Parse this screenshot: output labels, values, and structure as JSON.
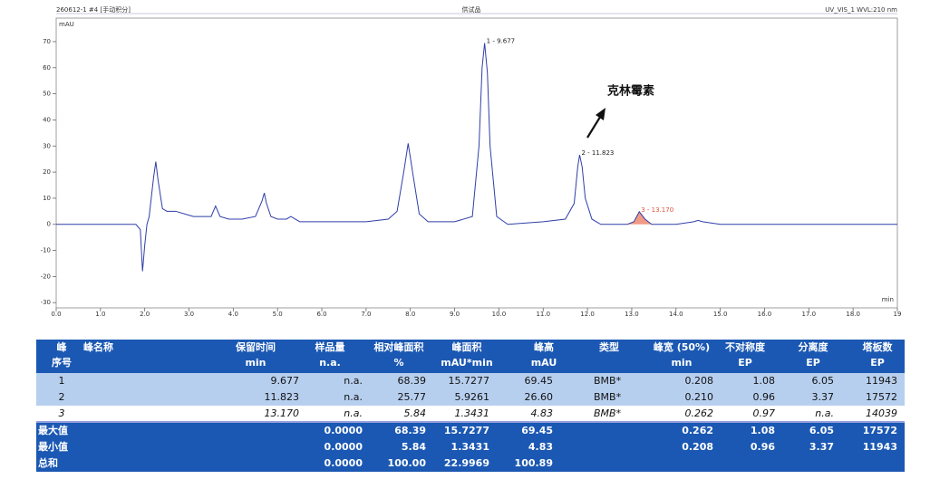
{
  "chart_data": {
    "type": "line",
    "header_left": "260612-1 #4 [手动积分]",
    "title": "供试品",
    "header_right": "UV_VIS_1 WVL:210 nm",
    "y_label": "mAU",
    "x_label": "min",
    "color": "#2f3fa8",
    "x": [
      0,
      0.5,
      1.0,
      1.5,
      1.8,
      1.9,
      1.95,
      2.0,
      2.05,
      2.1,
      2.2,
      2.25,
      2.3,
      2.4,
      2.5,
      2.7,
      2.9,
      3.1,
      3.3,
      3.5,
      3.6,
      3.7,
      3.9,
      4.2,
      4.5,
      4.65,
      4.7,
      4.75,
      4.85,
      5.0,
      5.2,
      5.3,
      5.5,
      6.0,
      6.5,
      7.0,
      7.5,
      7.7,
      7.85,
      7.95,
      8.05,
      8.2,
      8.4,
      9.0,
      9.4,
      9.55,
      9.62,
      9.677,
      9.74,
      9.8,
      9.95,
      10.2,
      11.0,
      11.5,
      11.7,
      11.78,
      11.823,
      11.88,
      11.95,
      12.1,
      12.3,
      12.9,
      13.05,
      13.17,
      13.3,
      13.45,
      14.0,
      14.4,
      14.5,
      14.6,
      15.0,
      17.0,
      19.0
    ],
    "values": [
      0,
      0,
      0,
      0,
      0,
      -2,
      -18,
      -8,
      0,
      3,
      18,
      24,
      17,
      6,
      5,
      5,
      4,
      3,
      3,
      3,
      7,
      3,
      2,
      2,
      3,
      9,
      12,
      8,
      3,
      2,
      2,
      3,
      1,
      1,
      1,
      1,
      2,
      5,
      20,
      31,
      20,
      4,
      1,
      1,
      3,
      30,
      60,
      69.45,
      58,
      30,
      3,
      0,
      1,
      2,
      8,
      22,
      26.6,
      22,
      10,
      2,
      0,
      0,
      1,
      4.83,
      2,
      0,
      0,
      1,
      1.5,
      1,
      0,
      0,
      0
    ],
    "peaks": [
      {
        "label": "1 - 9.677",
        "x": 9.677,
        "y": 69.45,
        "color": "#222222"
      },
      {
        "label": "2 - 11.823",
        "x": 11.823,
        "y": 26.6,
        "color": "#222222"
      },
      {
        "label": "3 - 13.170",
        "x": 13.17,
        "y": 4.83,
        "color": "#e0503a",
        "fill": "#f19a86"
      }
    ],
    "annotation": "克林霉素",
    "xlim": [
      0,
      19
    ],
    "ylim": [
      -32,
      79
    ],
    "xticks": [
      {
        "value": 0,
        "label": "0.0"
      },
      {
        "value": 1,
        "label": "1.0"
      },
      {
        "value": 2,
        "label": "2.0"
      },
      {
        "value": 3,
        "label": "3.0"
      },
      {
        "value": 4,
        "label": "4.0"
      },
      {
        "value": 5,
        "label": "5.0"
      },
      {
        "value": 6,
        "label": "6.0"
      },
      {
        "value": 7,
        "label": "7.0"
      },
      {
        "value": 8,
        "label": "8.0"
      },
      {
        "value": 9,
        "label": "9.0"
      },
      {
        "value": 10,
        "label": "10.0"
      },
      {
        "value": 11,
        "label": "11.0"
      },
      {
        "value": 12,
        "label": "12.0"
      },
      {
        "value": 13,
        "label": "13.0"
      },
      {
        "value": 14,
        "label": "14.0"
      },
      {
        "value": 15,
        "label": "15.0"
      },
      {
        "value": 16,
        "label": "16.0"
      },
      {
        "value": 17,
        "label": "17.0"
      },
      {
        "value": 18,
        "label": "18.0"
      },
      19
    ],
    "yticks": [
      -30,
      -20,
      -10,
      0,
      10,
      20,
      30,
      40,
      50,
      60,
      70
    ]
  },
  "table": {
    "header": [
      [
        "峰",
        "峰名称",
        "保留时间",
        "样品量",
        "相对峰面积",
        "峰面积",
        "峰高",
        "类型",
        "峰宽 (50%)",
        "不对称度",
        "分离度",
        "塔板数"
      ],
      [
        "序号",
        null,
        "min",
        "n.a.",
        "%",
        "mAU*min",
        "mAU",
        null,
        "min",
        "EP",
        "EP",
        "EP"
      ]
    ],
    "rows": [
      [
        "1",
        null,
        "9.677",
        "n.a.",
        "68.39",
        "15.7277",
        "69.45",
        "BMB*",
        "0.208",
        "1.08",
        "6.05",
        "11943"
      ],
      [
        "2",
        null,
        "11.823",
        "n.a.",
        "25.77",
        "5.9261",
        "26.60",
        "BMB*",
        "0.210",
        "0.96",
        "3.37",
        "17572"
      ],
      [
        "3",
        null,
        "13.170",
        "n.a.",
        "5.84",
        "1.3431",
        "4.83",
        "BMB*",
        "0.262",
        "0.97",
        "n.a.",
        "14039"
      ]
    ],
    "summary": [
      {
        "label": "最大值",
        "cells": [
          null,
          "0.0000",
          "68.39",
          "15.7277",
          "69.45",
          null,
          "0.262",
          "1.08",
          "6.05",
          "17572"
        ]
      },
      {
        "label": "最小值",
        "cells": [
          null,
          "0.0000",
          "5.84",
          "1.3431",
          "4.83",
          null,
          "0.208",
          "0.96",
          "3.37",
          "11943"
        ]
      },
      {
        "label": "总和",
        "cells": [
          null,
          "0.0000",
          "100.00",
          "22.9969",
          "100.89",
          null,
          null,
          null,
          null,
          null
        ]
      }
    ]
  }
}
